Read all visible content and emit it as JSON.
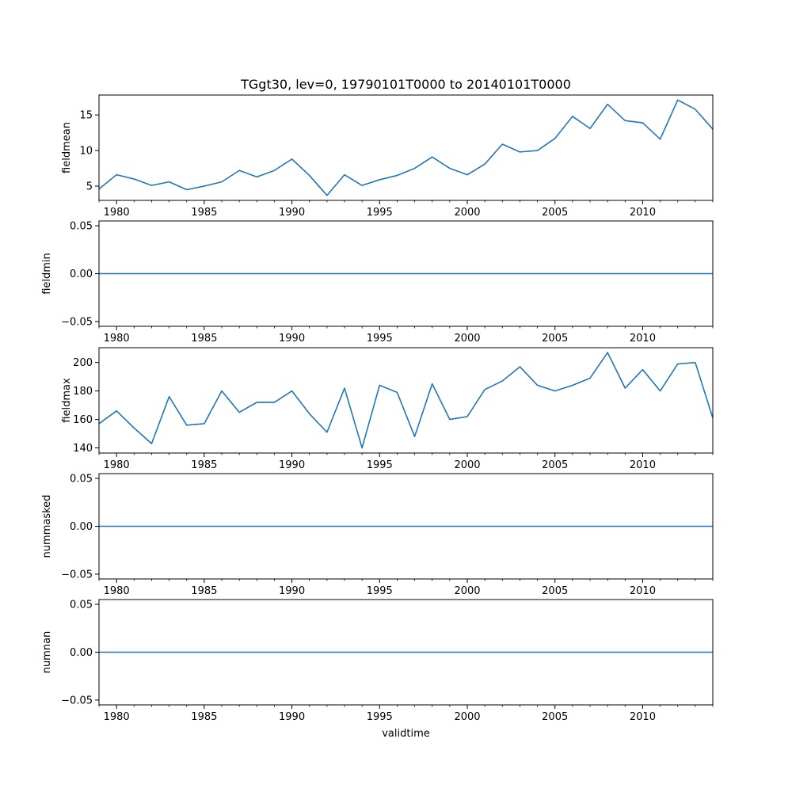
{
  "chart_data": {
    "type": "line",
    "title": "TGgt30, lev=0, 19790101T0000 to 20140101T0000",
    "xlabel": "validtime",
    "xlim": [
      1979,
      2014
    ],
    "x_major_ticks": [
      1980,
      1985,
      1990,
      1995,
      2000,
      2005,
      2010
    ],
    "x_minor_ticks": [
      1979,
      1981,
      1982,
      1983,
      1984,
      1986,
      1987,
      1988,
      1989,
      1991,
      1992,
      1993,
      1994,
      1996,
      1997,
      1998,
      1999,
      2001,
      2002,
      2003,
      2004,
      2006,
      2007,
      2008,
      2009,
      2011,
      2012,
      2013,
      2014
    ],
    "x": [
      1979,
      1980,
      1981,
      1982,
      1983,
      1984,
      1985,
      1986,
      1987,
      1988,
      1989,
      1990,
      1991,
      1992,
      1993,
      1994,
      1995,
      1996,
      1997,
      1998,
      1999,
      2000,
      2001,
      2002,
      2003,
      2004,
      2005,
      2006,
      2007,
      2008,
      2009,
      2010,
      2011,
      2012,
      2013,
      2014
    ],
    "color": "#1f77b4",
    "grid": false,
    "panels": [
      {
        "ylabel": "fieldmean",
        "ylim": [
          3.0,
          17.8
        ],
        "yticks": [
          5,
          10,
          15
        ],
        "ytick_labels": [
          "5",
          "10",
          "15"
        ],
        "values": [
          4.6,
          6.6,
          6.0,
          5.1,
          5.6,
          4.5,
          5.0,
          5.6,
          7.2,
          6.3,
          7.2,
          8.8,
          6.5,
          3.7,
          6.6,
          5.1,
          5.9,
          6.5,
          7.5,
          9.1,
          7.5,
          6.6,
          8.1,
          10.9,
          9.8,
          10.0,
          11.7,
          14.8,
          13.1,
          16.5,
          14.2,
          13.9,
          11.6,
          17.1,
          15.8,
          13.0
        ]
      },
      {
        "ylabel": "fieldmin",
        "ylim": [
          -0.055,
          0.055
        ],
        "yticks": [
          -0.05,
          0.0,
          0.05
        ],
        "ytick_labels": [
          "−0.05",
          "0.00",
          "0.05"
        ],
        "values": [
          0,
          0,
          0,
          0,
          0,
          0,
          0,
          0,
          0,
          0,
          0,
          0,
          0,
          0,
          0,
          0,
          0,
          0,
          0,
          0,
          0,
          0,
          0,
          0,
          0,
          0,
          0,
          0,
          0,
          0,
          0,
          0,
          0,
          0,
          0,
          0
        ]
      },
      {
        "ylabel": "fieldmax",
        "ylim": [
          136.4,
          210.4
        ],
        "yticks": [
          140,
          160,
          180,
          200
        ],
        "ytick_labels": [
          "140",
          "160",
          "180",
          "200"
        ],
        "values": [
          157,
          166,
          154,
          143,
          176,
          156,
          157,
          180,
          165,
          172,
          172,
          180,
          164,
          151,
          182,
          140,
          184,
          179,
          148,
          185,
          160,
          162,
          181,
          187,
          197,
          184,
          180,
          184,
          189,
          207,
          182,
          195,
          180,
          199,
          200,
          161
        ]
      },
      {
        "ylabel": "nummasked",
        "ylim": [
          -0.055,
          0.055
        ],
        "yticks": [
          -0.05,
          0.0,
          0.05
        ],
        "ytick_labels": [
          "−0.05",
          "0.00",
          "0.05"
        ],
        "values": [
          0,
          0,
          0,
          0,
          0,
          0,
          0,
          0,
          0,
          0,
          0,
          0,
          0,
          0,
          0,
          0,
          0,
          0,
          0,
          0,
          0,
          0,
          0,
          0,
          0,
          0,
          0,
          0,
          0,
          0,
          0,
          0,
          0,
          0,
          0,
          0
        ]
      },
      {
        "ylabel": "numnan",
        "ylim": [
          -0.055,
          0.055
        ],
        "yticks": [
          -0.05,
          0.0,
          0.05
        ],
        "ytick_labels": [
          "−0.05",
          "0.00",
          "0.05"
        ],
        "values": [
          0,
          0,
          0,
          0,
          0,
          0,
          0,
          0,
          0,
          0,
          0,
          0,
          0,
          0,
          0,
          0,
          0,
          0,
          0,
          0,
          0,
          0,
          0,
          0,
          0,
          0,
          0,
          0,
          0,
          0,
          0,
          0,
          0,
          0,
          0,
          0
        ]
      }
    ]
  }
}
